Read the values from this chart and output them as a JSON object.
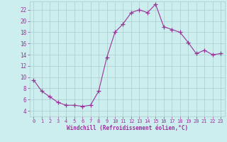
{
  "x": [
    0,
    1,
    2,
    3,
    4,
    5,
    6,
    7,
    8,
    9,
    10,
    11,
    12,
    13,
    14,
    15,
    16,
    17,
    18,
    19,
    20,
    21,
    22,
    23
  ],
  "y": [
    9.5,
    7.5,
    6.5,
    5.5,
    5.0,
    5.0,
    4.8,
    5.0,
    7.5,
    13.5,
    18.0,
    19.5,
    21.5,
    22.0,
    21.5,
    23.0,
    19.0,
    18.5,
    18.0,
    16.2,
    14.2,
    14.8,
    14.0,
    14.2
  ],
  "line_color": "#993399",
  "marker": "+",
  "marker_size": 4,
  "bg_color": "#cceeee",
  "grid_color": "#aacccc",
  "xlabel": "Windchill (Refroidissement éolien,°C)",
  "xlabel_color": "#993399",
  "tick_color": "#993399",
  "ylabel_ticks": [
    4,
    6,
    8,
    10,
    12,
    14,
    16,
    18,
    20,
    22
  ],
  "xlim": [
    -0.5,
    23.5
  ],
  "ylim": [
    3.0,
    23.5
  ],
  "xticks": [
    0,
    1,
    2,
    3,
    4,
    5,
    6,
    7,
    8,
    9,
    10,
    11,
    12,
    13,
    14,
    15,
    16,
    17,
    18,
    19,
    20,
    21,
    22,
    23
  ]
}
